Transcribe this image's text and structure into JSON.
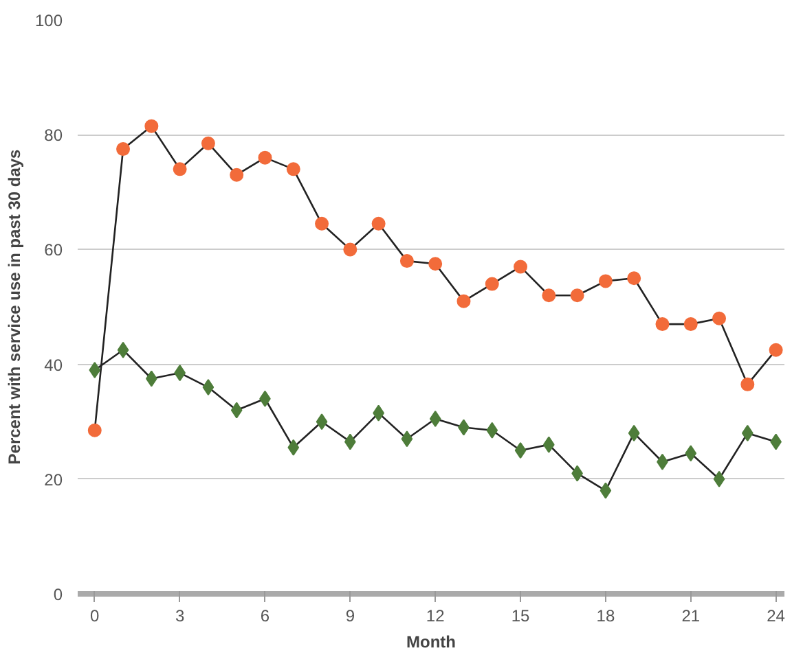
{
  "chart_data": {
    "type": "line",
    "xlabel": "Month",
    "ylabel": "Percent with service use in past 30 days",
    "x": [
      0,
      1,
      2,
      3,
      4,
      5,
      6,
      7,
      8,
      9,
      10,
      11,
      12,
      13,
      14,
      15,
      16,
      17,
      18,
      19,
      20,
      21,
      22,
      23,
      24
    ],
    "series": [
      {
        "color": "#f26b3a",
        "marker": "circle",
        "values": [
          28.5,
          77.5,
          81.5,
          74,
          78.5,
          73,
          76,
          74,
          64.5,
          60,
          64.5,
          58,
          57.5,
          51,
          54,
          57,
          52,
          52,
          54.5,
          55,
          47,
          47,
          48,
          36.5,
          42.5
        ]
      },
      {
        "color": "#4e7d3a",
        "marker": "diamond",
        "values": [
          39,
          42.5,
          37.5,
          38.5,
          36,
          32,
          34,
          25.5,
          30,
          26.5,
          31.5,
          27,
          30.5,
          29,
          28.5,
          25,
          26,
          21,
          18,
          28,
          23,
          24.5,
          20,
          28,
          26.5
        ]
      }
    ],
    "xlim": [
      -0.6,
      24.3
    ],
    "ylim": [
      0,
      100
    ],
    "xticks": [
      0,
      3,
      6,
      9,
      12,
      15,
      18,
      21,
      24
    ],
    "yticks": [
      0,
      20,
      40,
      60,
      80,
      100
    ],
    "grid": "y",
    "line_style": "solid"
  }
}
